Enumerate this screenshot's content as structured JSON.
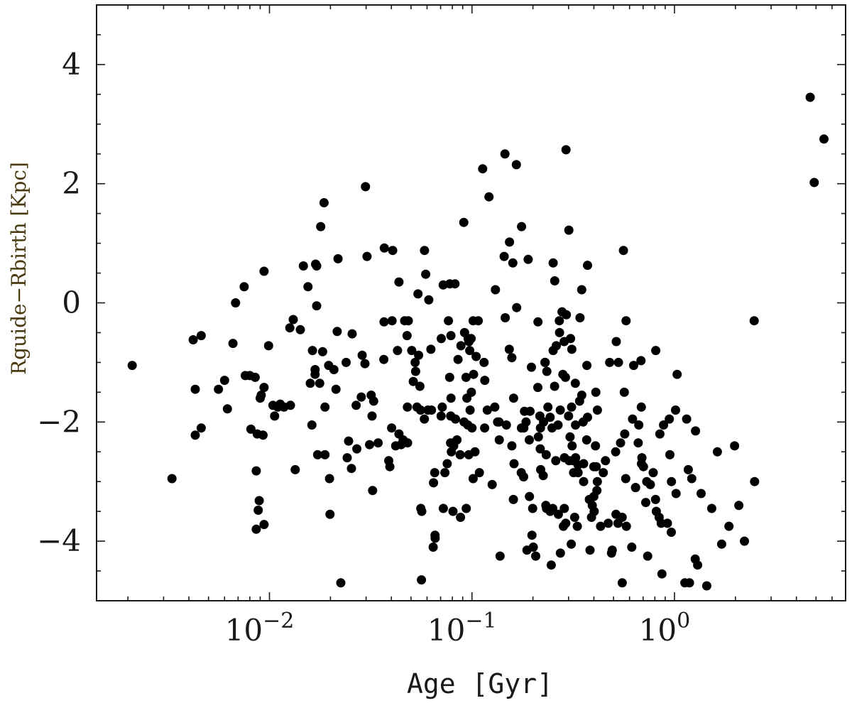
{
  "chart_data": {
    "type": "scatter",
    "title": "",
    "xlabel": "Age [Gyr]",
    "ylabel": "Rguide−Rbirth [Kpc]",
    "xscale": "log",
    "xlim": [
      0.0014,
      7.0
    ],
    "ylim": [
      -5.0,
      5.0
    ],
    "xticks": [
      {
        "value": 0.01,
        "base": "10",
        "exp": "−2"
      },
      {
        "value": 0.1,
        "base": "10",
        "exp": "−1"
      },
      {
        "value": 1,
        "base": "10",
        "exp": "0"
      }
    ],
    "yticks": [
      {
        "value": 4,
        "label": "4"
      },
      {
        "value": 2,
        "label": "2"
      },
      {
        "value": 0,
        "label": "0"
      },
      {
        "value": -2,
        "label": "−2"
      },
      {
        "value": -4,
        "label": "−4"
      }
    ],
    "grid": false,
    "legend": "none",
    "colors": {
      "marker": "#000000",
      "axes": "#1a1a1a",
      "ylabel": "#4a3a10"
    },
    "points": [
      [
        0.0021,
        -1.05
      ],
      [
        0.0033,
        -2.95
      ],
      [
        0.0042,
        -0.62
      ],
      [
        0.0043,
        -1.45
      ],
      [
        0.0043,
        -2.22
      ],
      [
        0.0046,
        -0.55
      ],
      [
        0.0046,
        -2.1
      ],
      [
        0.0056,
        -1.45
      ],
      [
        0.006,
        -1.3
      ],
      [
        0.0062,
        -1.78
      ],
      [
        0.0066,
        -0.68
      ],
      [
        0.0068,
        0.0
      ],
      [
        0.0075,
        0.27
      ],
      [
        0.0076,
        -1.22
      ],
      [
        0.008,
        -1.22
      ],
      [
        0.0081,
        -2.12
      ],
      [
        0.0085,
        -1.25
      ],
      [
        0.0086,
        -2.82
      ],
      [
        0.0087,
        -2.2
      ],
      [
        0.0086,
        -3.8
      ],
      [
        0.0088,
        -3.48
      ],
      [
        0.0089,
        -3.32
      ],
      [
        0.009,
        -1.6
      ],
      [
        0.0091,
        -1.55
      ],
      [
        0.0093,
        -2.22
      ],
      [
        0.0094,
        -1.42
      ],
      [
        0.0094,
        -3.72
      ],
      [
        0.0094,
        0.53
      ],
      [
        0.0099,
        -0.72
      ],
      [
        0.0104,
        -1.72
      ],
      [
        0.0106,
        -1.9
      ],
      [
        0.011,
        -1.75
      ],
      [
        0.0113,
        -1.7
      ],
      [
        0.0118,
        -1.75
      ],
      [
        0.0126,
        -0.42
      ],
      [
        0.0127,
        -1.72
      ],
      [
        0.0131,
        -0.28
      ],
      [
        0.0134,
        -2.8
      ],
      [
        0.0142,
        -0.45
      ],
      [
        0.0147,
        0.62
      ],
      [
        0.0155,
        0.27
      ],
      [
        0.0159,
        -1.35
      ],
      [
        0.0162,
        -2.05
      ],
      [
        0.0163,
        -0.8
      ],
      [
        0.0168,
        -1.2
      ],
      [
        0.0168,
        -1.12
      ],
      [
        0.0169,
        0.65
      ],
      [
        0.0171,
        0.62
      ],
      [
        0.0171,
        -0.05
      ],
      [
        0.0173,
        -2.55
      ],
      [
        0.0177,
        -1.35
      ],
      [
        0.0179,
        1.28
      ],
      [
        0.0183,
        -0.82
      ],
      [
        0.0186,
        1.68
      ],
      [
        0.0188,
        -2.55
      ],
      [
        0.0188,
        -1.75
      ],
      [
        0.0196,
        -1.05
      ],
      [
        0.0198,
        -2.95
      ],
      [
        0.0199,
        -3.55
      ],
      [
        0.0208,
        -1.12
      ],
      [
        0.0213,
        -1.45
      ],
      [
        0.0216,
        -0.48
      ],
      [
        0.0218,
        0.74
      ],
      [
        0.0225,
        -4.7
      ],
      [
        0.0239,
        -1.0
      ],
      [
        0.0242,
        -2.6
      ],
      [
        0.0246,
        -2.32
      ],
      [
        0.0254,
        -2.78
      ],
      [
        0.0256,
        -0.52
      ],
      [
        0.0268,
        -1.72
      ],
      [
        0.027,
        -2.45
      ],
      [
        0.0284,
        -1.58
      ],
      [
        0.0287,
        -0.88
      ],
      [
        0.0296,
        -1.02
      ],
      [
        0.0298,
        1.95
      ],
      [
        0.0303,
        0.78
      ],
      [
        0.0312,
        -2.38
      ],
      [
        0.0318,
        -1.55
      ],
      [
        0.0321,
        -1.9
      ],
      [
        0.0323,
        -3.15
      ],
      [
        0.0327,
        -1.65
      ],
      [
        0.0344,
        -2.35
      ],
      [
        0.0367,
        -0.95
      ],
      [
        0.0368,
        -0.32
      ],
      [
        0.0369,
        0.92
      ],
      [
        0.0388,
        -2.65
      ],
      [
        0.0393,
        -2.75
      ],
      [
        0.0401,
        -2.1
      ],
      [
        0.0403,
        -0.3
      ],
      [
        0.0406,
        0.88
      ],
      [
        0.042,
        -2.4
      ],
      [
        0.0429,
        -0.8
      ],
      [
        0.0436,
        0.35
      ],
      [
        0.0436,
        -2.2
      ],
      [
        0.0447,
        -2.38
      ],
      [
        0.0457,
        -2.3
      ],
      [
        0.0465,
        -0.3
      ],
      [
        0.0478,
        -0.55
      ],
      [
        0.048,
        -1.75
      ],
      [
        0.0481,
        -2.35
      ],
      [
        0.0485,
        -0.3
      ],
      [
        0.0504,
        -0.8
      ],
      [
        0.0513,
        -1.32
      ],
      [
        0.0524,
        -1.0
      ],
      [
        0.0527,
        -1.15
      ],
      [
        0.0535,
        -1.75
      ],
      [
        0.0541,
        0.15
      ],
      [
        0.0545,
        -0.88
      ],
      [
        0.0553,
        -1.4
      ],
      [
        0.0557,
        -1.8
      ],
      [
        0.0559,
        -3.45
      ],
      [
        0.0563,
        -4.65
      ],
      [
        0.0565,
        -3.5
      ],
      [
        0.0582,
        -1.95
      ],
      [
        0.0583,
        0.88
      ],
      [
        0.0591,
        0.48
      ],
      [
        0.0606,
        -1.8
      ],
      [
        0.0612,
        0.05
      ],
      [
        0.0627,
        -0.78
      ],
      [
        0.0631,
        -1.8
      ],
      [
        0.0643,
        -4.1
      ],
      [
        0.0646,
        -3.02
      ],
      [
        0.0655,
        -2.85
      ],
      [
        0.0657,
        -3.9
      ],
      [
        0.0658,
        -3.95
      ],
      [
        0.0704,
        -1.9
      ],
      [
        0.0705,
        -0.6
      ],
      [
        0.0713,
        -1.75
      ],
      [
        0.0721,
        0.3
      ],
      [
        0.0722,
        -3.45
      ],
      [
        0.0735,
        -2.85
      ],
      [
        0.0755,
        -2.7
      ],
      [
        0.0765,
        -0.3
      ],
      [
        0.0776,
        -1.25
      ],
      [
        0.0777,
        0.32
      ],
      [
        0.0784,
        -2.35
      ],
      [
        0.0785,
        -1.9
      ],
      [
        0.0787,
        -0.55
      ],
      [
        0.0788,
        -1.6
      ],
      [
        0.0791,
        -2.5
      ],
      [
        0.0806,
        -3.5
      ],
      [
        0.0812,
        -2.4
      ],
      [
        0.0824,
        0.32
      ],
      [
        0.0829,
        -1.95
      ],
      [
        0.0843,
        -2.3
      ],
      [
        0.0853,
        -0.95
      ],
      [
        0.0874,
        -2.55
      ],
      [
        0.0878,
        -3.6
      ],
      [
        0.0882,
        -0.72
      ],
      [
        0.0911,
        1.35
      ],
      [
        0.0914,
        -2.0
      ],
      [
        0.0919,
        -0.5
      ],
      [
        0.0935,
        -1.25
      ],
      [
        0.0937,
        -3.45
      ],
      [
        0.0944,
        -1.6
      ],
      [
        0.0954,
        -2.05
      ],
      [
        0.0957,
        -0.6
      ],
      [
        0.0965,
        -2.55
      ],
      [
        0.0966,
        -0.65
      ],
      [
        0.0975,
        -0.8
      ],
      [
        0.0979,
        -1.8
      ],
      [
        0.0991,
        -0.6
      ],
      [
        0.0993,
        -1.5
      ],
      [
        0.1,
        -2.1
      ],
      [
        0.1013,
        -0.3
      ],
      [
        0.1013,
        -2.95
      ],
      [
        0.1018,
        -1.2
      ],
      [
        0.1035,
        -2.5
      ],
      [
        0.1048,
        -0.9
      ],
      [
        0.1074,
        -0.3
      ],
      [
        0.1088,
        -2.85
      ],
      [
        0.1129,
        2.25
      ],
      [
        0.1148,
        -1.0
      ],
      [
        0.1155,
        -2.1
      ],
      [
        0.1157,
        -1.3
      ],
      [
        0.119,
        -1.8
      ],
      [
        0.1213,
        1.78
      ],
      [
        0.1258,
        -3.05
      ],
      [
        0.1296,
        -1.75
      ],
      [
        0.1306,
        0.22
      ],
      [
        0.1338,
        -2.0
      ],
      [
        0.1361,
        -2.0
      ],
      [
        0.1364,
        -2.3
      ],
      [
        0.1376,
        -4.25
      ],
      [
        0.1442,
        0.78
      ],
      [
        0.1455,
        2.5
      ],
      [
        0.146,
        -0.25
      ],
      [
        0.1479,
        -2.05
      ],
      [
        0.1528,
        -0.78
      ],
      [
        0.1532,
        1.02
      ],
      [
        0.1573,
        -2.4
      ],
      [
        0.1574,
        -0.92
      ],
      [
        0.1591,
        0.67
      ],
      [
        0.1602,
        -3.3
      ],
      [
        0.1606,
        -1.6
      ],
      [
        0.1614,
        -2.7
      ],
      [
        0.1657,
        2.32
      ],
      [
        0.1662,
        -0.08
      ],
      [
        0.1752,
        -2.85
      ],
      [
        0.1755,
        -2.1
      ],
      [
        0.1758,
        1.28
      ],
      [
        0.1799,
        -2.92
      ],
      [
        0.1803,
        -2.1
      ],
      [
        0.1817,
        -1.82
      ],
      [
        0.1849,
        -2.0
      ],
      [
        0.1869,
        -4.15
      ],
      [
        0.1894,
        0.73
      ],
      [
        0.1919,
        -2.3
      ],
      [
        0.1922,
        -3.25
      ],
      [
        0.1935,
        -1.82
      ],
      [
        0.1966,
        -1.08
      ],
      [
        0.1978,
        -3.9
      ],
      [
        0.1994,
        -3.45
      ],
      [
        0.2008,
        -4.1
      ],
      [
        0.2064,
        -4.25
      ],
      [
        0.2115,
        -1.42
      ],
      [
        0.2118,
        -0.32
      ],
      [
        0.2128,
        -2.25
      ],
      [
        0.2164,
        -1.9
      ],
      [
        0.2174,
        -2.45
      ],
      [
        0.2178,
        -2.1
      ],
      [
        0.2183,
        -2.8
      ],
      [
        0.2249,
        -2.9
      ],
      [
        0.2258,
        -2.0
      ],
      [
        0.2292,
        -1.0
      ],
      [
        0.2299,
        -1.0
      ],
      [
        0.2317,
        -3.4
      ],
      [
        0.2326,
        -2.55
      ],
      [
        0.2335,
        -3.45
      ],
      [
        0.2342,
        -1.15
      ],
      [
        0.2372,
        -1.75
      ],
      [
        0.2432,
        -1.92
      ],
      [
        0.2434,
        -3.5
      ],
      [
        0.2462,
        -4.4
      ],
      [
        0.2484,
        -2.1
      ],
      [
        0.2505,
        -3.45
      ],
      [
        0.2517,
        0.67
      ],
      [
        0.2518,
        -0.8
      ],
      [
        0.2558,
        -1.4
      ],
      [
        0.2563,
        0.37
      ],
      [
        0.2593,
        -2.65
      ],
      [
        0.2608,
        -0.72
      ],
      [
        0.2662,
        -2.05
      ],
      [
        0.2671,
        -3.55
      ],
      [
        0.27,
        -0.3
      ],
      [
        0.2708,
        -0.5
      ],
      [
        0.2728,
        -1.8
      ],
      [
        0.2733,
        -4.2
      ],
      [
        0.2784,
        -0.15
      ],
      [
        0.2812,
        -1.2
      ],
      [
        0.2827,
        -3.75
      ],
      [
        0.2852,
        -0.65
      ],
      [
        0.2857,
        -3.45
      ],
      [
        0.2862,
        -2.6
      ],
      [
        0.2894,
        -1.25
      ],
      [
        0.2905,
        -3.7
      ],
      [
        0.2914,
        2.57
      ],
      [
        0.2926,
        -0.2
      ],
      [
        0.3,
        -1.9
      ],
      [
        0.3009,
        1.22
      ],
      [
        0.3019,
        -2.65
      ],
      [
        0.305,
        -2.25
      ],
      [
        0.3068,
        -0.6
      ],
      [
        0.3092,
        -4.05
      ],
      [
        0.3103,
        -1.75
      ],
      [
        0.3113,
        -0.78
      ],
      [
        0.3124,
        -2.4
      ],
      [
        0.3156,
        -2.65
      ],
      [
        0.3176,
        -2.85
      ],
      [
        0.3216,
        -3.6
      ],
      [
        0.3237,
        -1.35
      ],
      [
        0.3247,
        -2.05
      ],
      [
        0.3248,
        -2.6
      ],
      [
        0.3313,
        -3.75
      ],
      [
        0.3342,
        -2.72
      ],
      [
        0.3343,
        -2.85
      ],
      [
        0.34,
        -1.65
      ],
      [
        0.3415,
        -0.25
      ],
      [
        0.3482,
        0.22
      ],
      [
        0.3485,
        -1.55
      ],
      [
        0.3538,
        -2.0
      ],
      [
        0.3558,
        -2.7
      ],
      [
        0.3558,
        -3.0
      ],
      [
        0.3685,
        -2.3
      ],
      [
        0.3693,
        -1.05
      ],
      [
        0.3722,
        -1.92
      ],
      [
        0.3722,
        0.63
      ],
      [
        0.3799,
        -3.3
      ],
      [
        0.3826,
        -4.15
      ],
      [
        0.3892,
        -3.6
      ],
      [
        0.3928,
        -3.4
      ],
      [
        0.3997,
        -2.75
      ],
      [
        0.3998,
        -3.25
      ],
      [
        0.4015,
        -3.5
      ],
      [
        0.4072,
        -2.4
      ],
      [
        0.4089,
        -1.5
      ],
      [
        0.411,
        -2.75
      ],
      [
        0.414,
        -3.15
      ],
      [
        0.416,
        -3.0
      ],
      [
        0.4164,
        -1.8
      ],
      [
        0.4315,
        -3.75
      ],
      [
        0.445,
        -2.85
      ],
      [
        0.4565,
        -2.65
      ],
      [
        0.4711,
        -3.7
      ],
      [
        0.4785,
        -1.0
      ],
      [
        0.4889,
        -4.2
      ],
      [
        0.4928,
        -4.15
      ],
      [
        0.5121,
        -2.5
      ],
      [
        0.5142,
        -3.55
      ],
      [
        0.5158,
        -0.65
      ],
      [
        0.5259,
        -3.7
      ],
      [
        0.5292,
        -1.0
      ],
      [
        0.5414,
        -2.35
      ],
      [
        0.5516,
        -3.6
      ],
      [
        0.5523,
        -4.7
      ],
      [
        0.5598,
        0.88
      ],
      [
        0.5653,
        -1.5
      ],
      [
        0.5679,
        -2.2
      ],
      [
        0.5745,
        -2.95
      ],
      [
        0.5766,
        -0.3
      ],
      [
        0.5787,
        -3.75
      ],
      [
        0.6153,
        -4.1
      ],
      [
        0.6208,
        -1.95
      ],
      [
        0.629,
        -1.05
      ],
      [
        0.6421,
        -3.1
      ],
      [
        0.6426,
        -3.1
      ],
      [
        0.6622,
        -2.35
      ],
      [
        0.6662,
        -2.05
      ],
      [
        0.6835,
        -0.97
      ],
      [
        0.6861,
        -1.75
      ],
      [
        0.6874,
        -2.7
      ],
      [
        0.6908,
        -2.6
      ],
      [
        0.7031,
        -2.75
      ],
      [
        0.7214,
        -3.35
      ],
      [
        0.7294,
        -3.0
      ],
      [
        0.7371,
        -4.25
      ],
      [
        0.7604,
        -3.05
      ],
      [
        0.7852,
        -2.85
      ],
      [
        0.8063,
        -3.3
      ],
      [
        0.8083,
        -0.8
      ],
      [
        0.8133,
        -3.5
      ],
      [
        0.8399,
        -3.6
      ],
      [
        0.8469,
        -2.2
      ],
      [
        0.8599,
        -3.7
      ],
      [
        0.8673,
        -4.55
      ],
      [
        0.8836,
        -2.05
      ],
      [
        0.9226,
        -3.7
      ],
      [
        0.9429,
        -1.95
      ],
      [
        0.9491,
        -2.55
      ],
      [
        0.9646,
        -3.85
      ],
      [
        0.9658,
        -3.0
      ],
      [
        1.0124,
        -1.8
      ],
      [
        1.0185,
        -3.2
      ],
      [
        1.0309,
        -1.2
      ],
      [
        1.1258,
        -4.7
      ],
      [
        1.1485,
        -1.95
      ],
      [
        1.1702,
        -2.8
      ],
      [
        1.1859,
        -4.7
      ],
      [
        1.2166,
        -2.95
      ],
      [
        1.2664,
        -4.3
      ],
      [
        1.2705,
        -2.15
      ],
      [
        1.3018,
        -4.4
      ],
      [
        1.3536,
        -3.2
      ],
      [
        1.4428,
        -4.75
      ],
      [
        1.5265,
        -3.45
      ],
      [
        1.6287,
        -2.5
      ],
      [
        1.7096,
        -4.05
      ],
      [
        1.8586,
        -3.75
      ],
      [
        1.9804,
        -2.4
      ],
      [
        2.0783,
        -3.4
      ],
      [
        2.2149,
        -4.0
      ],
      [
        2.4737,
        -0.3
      ],
      [
        2.4873,
        -3.0
      ],
      [
        4.6806,
        3.45
      ],
      [
        4.9003,
        2.02
      ],
      [
        5.4717,
        2.75
      ]
    ]
  }
}
